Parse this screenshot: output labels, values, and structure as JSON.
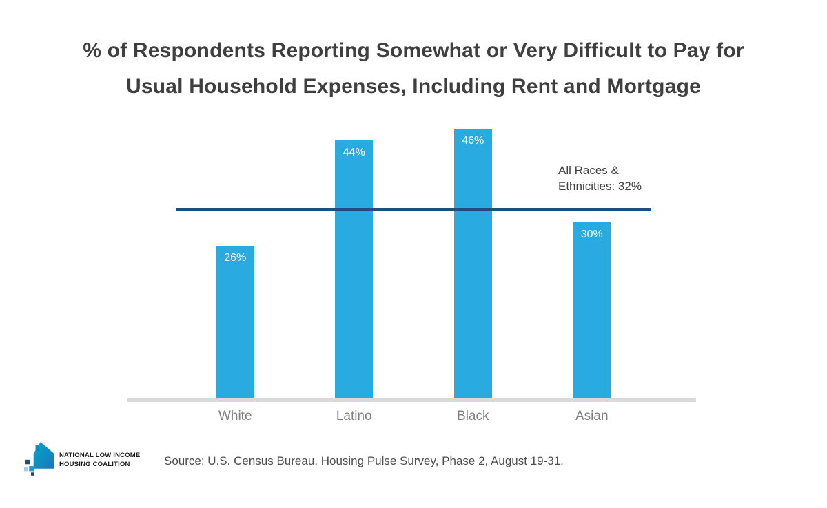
{
  "title": {
    "line1": "% of Respondents Reporting Somewhat or Very Difficult to Pay for",
    "line2": "Usual Household Expenses, Including Rent and Mortgage"
  },
  "chart_data": {
    "type": "bar",
    "title": "% of Respondents Reporting Somewhat or Very Difficult to Pay for Usual Household Expenses, Including Rent and Mortgage",
    "categories": [
      "White",
      "Latino",
      "Black",
      "Asian"
    ],
    "values": [
      26,
      44,
      46,
      30
    ],
    "value_labels": [
      "26%",
      "44%",
      "46%",
      "30%"
    ],
    "reference_line": {
      "value": 32,
      "label": "All Races &\nEthnicities: 32%"
    },
    "ylim": [
      0,
      50
    ],
    "grid": false,
    "legend": "none",
    "bar_color": "#29abe2",
    "reference_color": "#1f4e79",
    "baseline_color": "#d9d9d9"
  },
  "source": "Source: U.S. Census Bureau, Housing Pulse Survey, Phase 2, August 19-31.",
  "logo": {
    "line1": "NATIONAL LOW INCOME",
    "line2": "HOUSING COALITION"
  },
  "colors": {
    "title_text": "#3f3f3f",
    "axis_label_text": "#808080",
    "value_label_text": "#ffffff"
  }
}
